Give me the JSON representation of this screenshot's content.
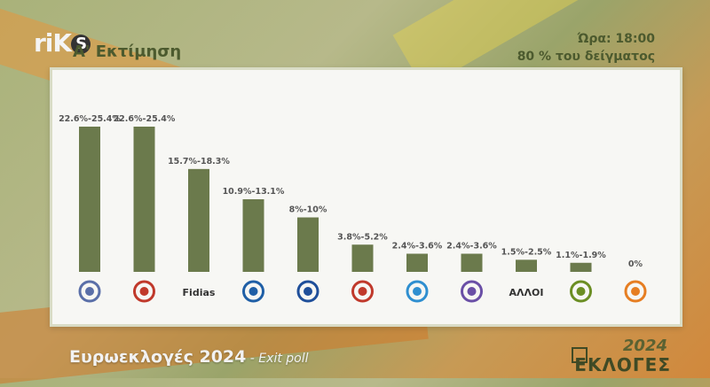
{
  "header": {
    "logo_text": "riK",
    "logo_badge": "S",
    "estimate": "Α' Εκτίμηση",
    "time": "Ώρα: 18:00",
    "sample": "80 % του δείγματος"
  },
  "footer": {
    "title": "Ευρωεκλογές 2024",
    "subtitle": " - Exit poll",
    "badge_year": "2024",
    "badge_word": "ΕΚΛΟΓΕΣ"
  },
  "colors": {
    "bar": "#6b7a4c",
    "label": "#555555"
  },
  "chart_data": {
    "type": "bar",
    "categories": [
      "party-logo-1",
      "party-logo-2",
      "Fidias",
      "party-logo-4",
      "party-logo-5",
      "party-logo-6",
      "party-logo-7",
      "Volt",
      "ΑΛΛΟΙ",
      "party-logo-10",
      "party-logo-11"
    ],
    "tick_labels": [
      "",
      "",
      "Fidias",
      "",
      "",
      "",
      "",
      "",
      "ΑΛΛΟΙ",
      "",
      ""
    ],
    "value_labels": [
      "22.6%-25.4%",
      "22.6%-25.4%",
      "15.7%-18.3%",
      "10.9%-13.1%",
      "8%-10%",
      "3.8%-5.2%",
      "2.4%-3.6%",
      "2.4%-3.6%",
      "1.5%-2.5%",
      "1.1%-1.9%",
      "0%"
    ],
    "ranges": [
      [
        22.6,
        25.4
      ],
      [
        22.6,
        25.4
      ],
      [
        15.7,
        18.3
      ],
      [
        10.9,
        13.1
      ],
      [
        8,
        10
      ],
      [
        3.8,
        5.2
      ],
      [
        2.4,
        3.6
      ],
      [
        2.4,
        3.6
      ],
      [
        1.5,
        2.5
      ],
      [
        1.1,
        1.9
      ],
      [
        0,
        0
      ]
    ],
    "values": [
      24.0,
      24.0,
      17.0,
      12.0,
      9.0,
      4.5,
      3.0,
      3.0,
      2.0,
      1.5,
      0
    ],
    "ylim": [
      0,
      24
    ],
    "grid": false,
    "legend": "none"
  }
}
